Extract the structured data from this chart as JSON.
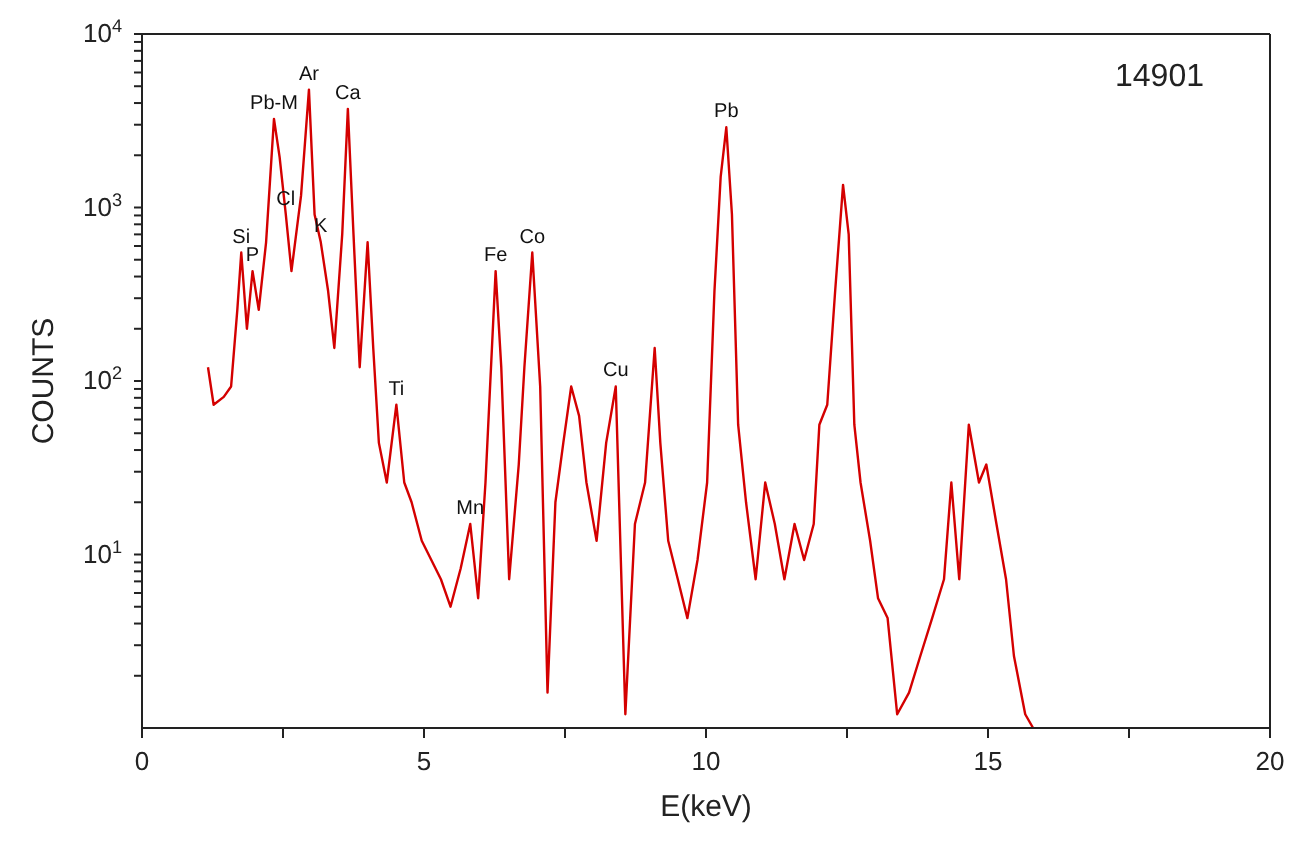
{
  "chart_data": {
    "type": "line",
    "xlabel": "E(keV)",
    "ylabel": "COUNTS",
    "log": "y",
    "marker": "none",
    "line_style": "solid",
    "xlim": [
      0,
      20
    ],
    "xticks": [
      0,
      {
        "value": 2.5,
        "label": null
      },
      5,
      {
        "value": 7.5,
        "label": null
      },
      10,
      {
        "value": 12.5,
        "label": null
      },
      15,
      {
        "value": 17.5,
        "label": null
      },
      20
    ],
    "ylim": [
      1,
      10000
    ],
    "yticks": [
      {
        "value": 2,
        "label": null
      },
      {
        "value": 3,
        "label": null
      },
      {
        "value": 4,
        "label": null
      },
      {
        "value": 5,
        "label": null
      },
      {
        "value": 6,
        "label": null
      },
      {
        "value": 7,
        "label": null
      },
      {
        "value": 8,
        "label": null
      },
      {
        "value": 9,
        "label": null
      },
      {
        "value": 10,
        "label": "10$^{1}$"
      },
      {
        "value": 20,
        "label": null
      },
      {
        "value": 30,
        "label": null
      },
      {
        "value": 40,
        "label": null
      },
      {
        "value": 50,
        "label": null
      },
      {
        "value": 60,
        "label": null
      },
      {
        "value": 70,
        "label": null
      },
      {
        "value": 80,
        "label": null
      },
      {
        "value": 90,
        "label": null
      },
      {
        "value": 100,
        "label": "10$^{2}$"
      },
      {
        "value": 200,
        "label": null
      },
      {
        "value": 300,
        "label": null
      },
      {
        "value": 400,
        "label": null
      },
      {
        "value": 500,
        "label": null
      },
      {
        "value": 600,
        "label": null
      },
      {
        "value": 700,
        "label": null
      },
      {
        "value": 800,
        "label": null
      },
      {
        "value": 900,
        "label": null
      },
      {
        "value": 1000,
        "label": "10$^{3}$"
      },
      {
        "value": 2000,
        "label": null
      },
      {
        "value": 3000,
        "label": null
      },
      {
        "value": 4000,
        "label": null
      },
      {
        "value": 5000,
        "label": null
      },
      {
        "value": 6000,
        "label": null
      },
      {
        "value": 7000,
        "label": null
      },
      {
        "value": 8000,
        "label": null
      },
      {
        "value": 9000,
        "label": null
      },
      {
        "value": 10000,
        "label": "10$^{4}$"
      }
    ],
    "series": [
      {
        "color": "#d40000",
        "x": [
          1.17,
          1.27,
          1.45,
          1.58,
          1.69,
          1.76,
          1.86,
          1.96,
          2.07,
          2.2,
          2.34,
          2.44,
          2.55,
          2.65,
          2.82,
          2.96,
          3.06,
          3.17,
          3.3,
          3.41,
          3.55,
          3.65,
          3.75,
          3.86,
          4.0,
          4.1,
          4.2,
          4.34,
          4.51,
          4.65,
          4.78,
          4.96,
          5.13,
          5.3,
          5.47,
          5.65,
          5.82,
          5.96,
          6.09,
          6.27,
          6.37,
          6.51,
          6.68,
          6.78,
          6.92,
          7.06,
          7.19,
          7.33,
          7.47,
          7.61,
          7.75,
          7.88,
          8.06,
          8.23,
          8.4,
          8.57,
          8.74,
          8.92,
          9.09,
          9.19,
          9.33,
          9.5,
          9.67,
          9.85,
          10.02,
          10.15,
          10.26,
          10.36,
          10.46,
          10.57,
          10.71,
          10.88,
          11.05,
          11.22,
          11.39,
          11.57,
          11.74,
          11.91,
          12.01,
          12.15,
          12.29,
          12.43,
          12.53,
          12.63,
          12.74,
          12.91,
          13.05,
          13.22,
          13.39,
          13.6,
          13.8,
          14.01,
          14.22,
          14.35,
          14.49,
          14.66,
          14.84,
          14.97,
          15.15,
          15.32,
          15.46,
          15.66,
          15.8
        ],
        "values": [
          120,
          73,
          81,
          93,
          257,
          550,
          200,
          430,
          257,
          630,
          3240,
          1950,
          910,
          430,
          1170,
          4780,
          910,
          630,
          330,
          155,
          700,
          3700,
          700,
          120,
          630,
          155,
          44,
          26,
          73,
          26,
          20,
          12,
          9.3,
          7.2,
          5,
          8.3,
          15,
          5.6,
          26,
          430,
          120,
          7.2,
          33,
          120,
          550,
          93,
          1.6,
          20,
          44,
          93,
          63,
          26,
          12,
          44,
          93,
          1.2,
          15,
          26,
          155,
          44,
          12,
          7.2,
          4.3,
          9.3,
          26,
          330,
          1500,
          2900,
          910,
          56,
          20,
          7.2,
          26,
          15,
          7.2,
          15,
          9.3,
          15,
          56,
          73,
          330,
          1350,
          700,
          56,
          26,
          12,
          5.6,
          4.3,
          1.2,
          1.6,
          2.6,
          4.3,
          7.2,
          26,
          7.2,
          56,
          26,
          33,
          15,
          7.2,
          2.6,
          1.2,
          1
        ]
      }
    ],
    "annotations": [
      "14901",
      {
        "text": "Si",
        "x": 1.76,
        "y": 550
      },
      {
        "text": "P",
        "x": 1.96,
        "y": 430
      },
      {
        "text": "Pb-M",
        "x": 2.34,
        "y": 3240
      },
      {
        "text": "Ar",
        "x": 2.96,
        "y": 4780
      },
      {
        "text": "Cl",
        "x": 2.55,
        "y": 910
      },
      {
        "text": "K",
        "x": 3.17,
        "y": 630
      },
      {
        "text": "Ca",
        "x": 3.65,
        "y": 3700
      },
      {
        "text": "Ti",
        "x": 4.51,
        "y": 73
      },
      {
        "text": "Mn",
        "x": 5.82,
        "y": 15
      },
      {
        "text": "Fe",
        "x": 6.27,
        "y": 430
      },
      {
        "text": "Co",
        "x": 6.92,
        "y": 550
      },
      {
        "text": "Cu",
        "x": 8.4,
        "y": 93
      },
      {
        "text": "Pb",
        "x": 10.36,
        "y": 2900
      }
    ]
  }
}
